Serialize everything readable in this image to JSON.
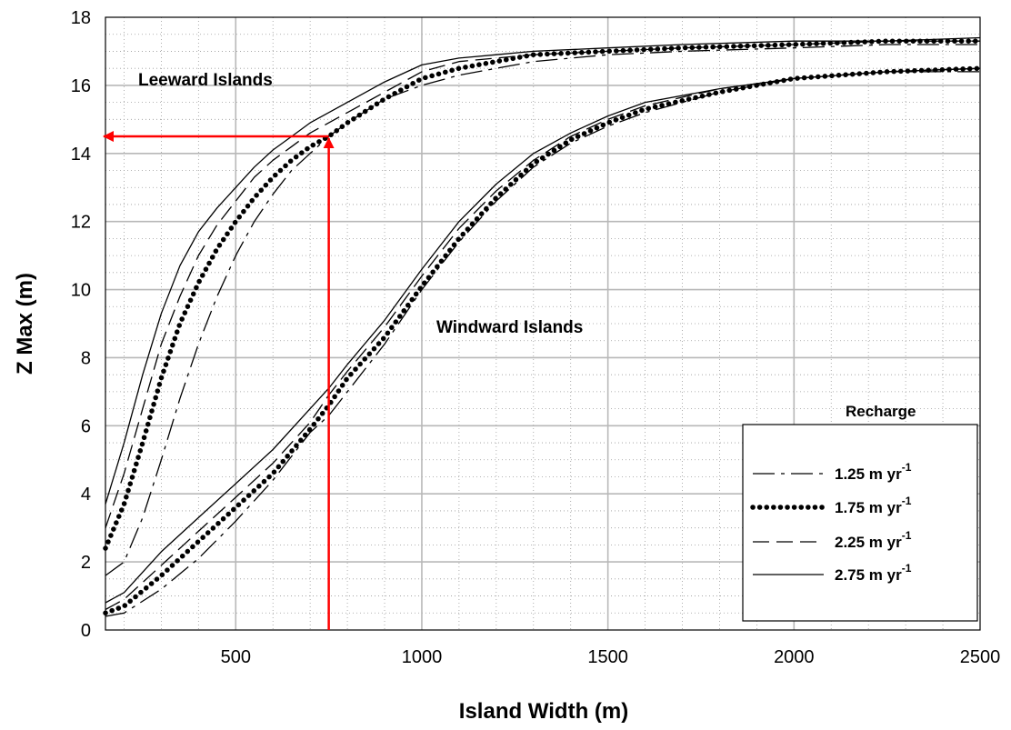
{
  "chart_data": {
    "type": "line",
    "xlabel": "Island Width (m)",
    "ylabel": "Z Max (m)",
    "xlim": [
      150,
      2500
    ],
    "ylim": [
      0,
      18
    ],
    "x_ticks": [
      500,
      1000,
      1500,
      2000,
      2500
    ],
    "y_ticks": [
      0,
      2,
      4,
      6,
      8,
      10,
      12,
      14,
      16,
      18
    ],
    "grid": "major solid gray, minor dotted",
    "legend": {
      "title": "Recharge",
      "placement": "bottom-right",
      "unit_prefix": "m yr",
      "unit_exponent": "-1"
    },
    "annotations": [
      {
        "text": "Leeward Islands",
        "x": 420,
        "y": 16.2
      },
      {
        "text": "Windward Islands",
        "x": 1020,
        "y": 8.8
      }
    ],
    "guide_lines": {
      "color": "#ff0000",
      "vertical_x": 750,
      "horizontal_y": 14.5,
      "arrow_end_x": 150
    },
    "groups": [
      {
        "name": "Leeward Islands",
        "series": [
          {
            "recharge": "1.25",
            "style": "dash-dot",
            "x": [
              150,
              200,
              250,
              300,
              350,
              400,
              450,
              500,
              550,
              600,
              650,
              700,
              750,
              800,
              900,
              1000,
              1100,
              1200,
              1300,
              1500,
              1700,
              2000,
              2250,
              2500
            ],
            "y": [
              1.6,
              2.0,
              3.3,
              5.0,
              6.8,
              8.4,
              9.8,
              11.0,
              12.0,
              12.8,
              13.5,
              14.0,
              14.5,
              14.9,
              15.6,
              16.0,
              16.3,
              16.5,
              16.7,
              16.9,
              17.0,
              17.1,
              17.2,
              17.2
            ]
          },
          {
            "recharge": "1.75",
            "style": "dotted",
            "x": [
              150,
              200,
              250,
              300,
              350,
              400,
              450,
              500,
              550,
              600,
              650,
              700,
              750,
              800,
              900,
              1000,
              1100,
              1200,
              1300,
              1500,
              1700,
              2000,
              2250,
              2500
            ],
            "y": [
              2.4,
              3.7,
              5.5,
              7.4,
              9.0,
              10.2,
              11.2,
              12.0,
              12.7,
              13.3,
              13.8,
              14.2,
              14.5,
              14.9,
              15.6,
              16.2,
              16.5,
              16.7,
              16.9,
              17.0,
              17.1,
              17.2,
              17.3,
              17.3
            ]
          },
          {
            "recharge": "2.25",
            "style": "dashed",
            "x": [
              150,
              200,
              250,
              300,
              350,
              400,
              450,
              500,
              550,
              600,
              650,
              700,
              750,
              800,
              900,
              1000,
              1100,
              1200,
              1300,
              1500,
              1700,
              2000,
              2250,
              2500
            ],
            "y": [
              3.0,
              4.6,
              6.5,
              8.4,
              9.8,
              11.0,
              11.9,
              12.6,
              13.3,
              13.8,
              14.2,
              14.6,
              14.9,
              15.2,
              15.8,
              16.4,
              16.7,
              16.8,
              16.9,
              17.0,
              17.1,
              17.2,
              17.3,
              17.3
            ]
          },
          {
            "recharge": "2.75",
            "style": "solid",
            "x": [
              150,
              200,
              250,
              300,
              350,
              400,
              450,
              500,
              550,
              600,
              650,
              700,
              750,
              800,
              900,
              1000,
              1100,
              1200,
              1300,
              1500,
              1700,
              2000,
              2250,
              2500
            ],
            "y": [
              3.7,
              5.5,
              7.5,
              9.3,
              10.7,
              11.7,
              12.4,
              13.0,
              13.6,
              14.1,
              14.5,
              14.9,
              15.2,
              15.5,
              16.1,
              16.6,
              16.8,
              16.9,
              17.0,
              17.1,
              17.2,
              17.3,
              17.3,
              17.4
            ]
          }
        ]
      },
      {
        "name": "Windward Islands",
        "series": [
          {
            "recharge": "1.25",
            "style": "dash-dot",
            "x": [
              150,
              200,
              300,
              400,
              500,
              600,
              700,
              750,
              800,
              900,
              1000,
              1100,
              1200,
              1300,
              1400,
              1500,
              1600,
              1800,
              2000,
              2250,
              2500
            ],
            "y": [
              0.4,
              0.5,
              1.2,
              2.1,
              3.2,
              4.4,
              5.8,
              6.3,
              7.0,
              8.4,
              10.0,
              11.4,
              12.6,
              13.6,
              14.3,
              14.8,
              15.2,
              15.8,
              16.2,
              16.4,
              16.4
            ]
          },
          {
            "recharge": "1.75",
            "style": "dotted",
            "x": [
              150,
              200,
              300,
              400,
              500,
              600,
              700,
              750,
              800,
              900,
              1000,
              1100,
              1200,
              1300,
              1400,
              1500,
              1600,
              1800,
              2000,
              2250,
              2500
            ],
            "y": [
              0.5,
              0.7,
              1.6,
              2.6,
              3.6,
              4.6,
              5.9,
              6.6,
              7.4,
              8.6,
              10.1,
              11.5,
              12.7,
              13.7,
              14.4,
              14.9,
              15.3,
              15.8,
              16.2,
              16.4,
              16.5
            ]
          },
          {
            "recharge": "2.25",
            "style": "dashed",
            "x": [
              150,
              200,
              300,
              400,
              500,
              600,
              700,
              750,
              800,
              900,
              1000,
              1100,
              1200,
              1300,
              1400,
              1500,
              1600,
              1800,
              2000,
              2250,
              2500
            ],
            "y": [
              0.6,
              0.9,
              1.9,
              2.9,
              3.9,
              4.9,
              6.1,
              6.9,
              7.6,
              8.9,
              10.4,
              11.8,
              12.9,
              13.8,
              14.5,
              15.0,
              15.4,
              15.9,
              16.2,
              16.4,
              16.5
            ]
          },
          {
            "recharge": "2.75",
            "style": "solid",
            "x": [
              150,
              200,
              300,
              400,
              500,
              600,
              700,
              750,
              800,
              900,
              1000,
              1100,
              1200,
              1300,
              1400,
              1500,
              1600,
              1800,
              2000,
              2250,
              2500
            ],
            "y": [
              0.8,
              1.1,
              2.3,
              3.3,
              4.3,
              5.3,
              6.5,
              7.1,
              7.8,
              9.1,
              10.6,
              12.0,
              13.1,
              14.0,
              14.6,
              15.1,
              15.5,
              15.9,
              16.2,
              16.4,
              16.5
            ]
          }
        ]
      }
    ]
  }
}
